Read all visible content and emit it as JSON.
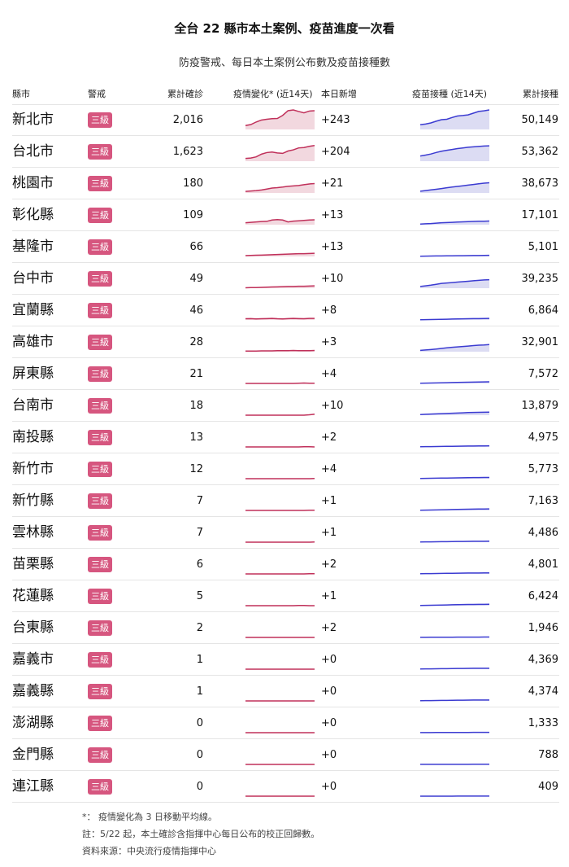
{
  "title": "全台 22 縣市本土案例、疫苗進度一次看",
  "subtitle": "防疫警戒、每日本土案例公布數及疫苗接種數",
  "headers": {
    "county": "縣市",
    "alert": "警戒",
    "total_cases": "累計確診",
    "trend": "疫情變化* (近14天)",
    "new_today": "本日新增",
    "vaccine_trend": "疫苗接種 (近14天)",
    "vaccine_total": "累計接種"
  },
  "colors": {
    "badge": "#d6567f",
    "case_line": "#c0305a",
    "case_fill": "#f2d8df",
    "vax_line": "#3b3bd1",
    "vax_fill": "#dcdcf3"
  },
  "notes": [
    "*： 疫情變化為 3 日移動平均線。",
    "註：5/22 起，本土確診含指揮中心每日公布的校正回歸數。",
    "資料來源：中央流行疫情指揮中心"
  ],
  "chart_data": {
    "type": "table",
    "rows": [
      {
        "county": "新北市",
        "alert": "三級",
        "total": "2,016",
        "new": "+243",
        "vaccinated": "50,149",
        "case_trend": [
          20,
          25,
          38,
          48,
          52,
          55,
          56,
          72,
          96,
          100,
          92,
          85,
          94,
          96
        ],
        "vax_trend": [
          22,
          25,
          30,
          38,
          45,
          47,
          55,
          62,
          64,
          67,
          75,
          83,
          86,
          90
        ]
      },
      {
        "county": "台北市",
        "alert": "三級",
        "total": "1,623",
        "new": "+204",
        "vaccinated": "53,362",
        "case_trend": [
          14,
          16,
          22,
          36,
          44,
          47,
          42,
          40,
          52,
          58,
          68,
          70,
          76,
          80
        ],
        "vax_trend": [
          24,
          28,
          33,
          40,
          46,
          50,
          54,
          58,
          61,
          64,
          66,
          68,
          70,
          71
        ]
      },
      {
        "county": "桃園市",
        "alert": "三級",
        "total": "180",
        "new": "+21",
        "vaccinated": "38,673",
        "case_trend": [
          8,
          10,
          12,
          15,
          20,
          25,
          27,
          30,
          34,
          36,
          38,
          42,
          46,
          48
        ],
        "vax_trend": [
          8,
          11,
          14,
          17,
          20,
          24,
          27,
          30,
          33,
          36,
          39,
          42,
          45,
          47
        ]
      },
      {
        "county": "彰化縣",
        "alert": "三級",
        "total": "109",
        "new": "+13",
        "vaccinated": "17,101",
        "case_trend": [
          10,
          12,
          14,
          16,
          17,
          24,
          26,
          24,
          14,
          18,
          20,
          22,
          24,
          25
        ],
        "vax_trend": [
          3,
          4,
          5,
          7,
          9,
          10,
          11,
          12,
          13,
          14,
          15,
          16,
          16,
          17
        ]
      },
      {
        "county": "基隆市",
        "alert": "三級",
        "total": "66",
        "new": "+13",
        "vaccinated": "5,101",
        "case_trend": [
          4,
          5,
          6,
          7,
          8,
          9,
          10,
          11,
          12,
          13,
          14,
          14,
          15,
          16
        ],
        "vax_trend": [
          1,
          1.5,
          2,
          2.2,
          2.5,
          2.8,
          3,
          3.2,
          3.5,
          3.8,
          4,
          4.3,
          4.7,
          5.1
        ]
      },
      {
        "county": "台中市",
        "alert": "三級",
        "total": "49",
        "new": "+10",
        "vaccinated": "39,235",
        "case_trend": [
          2,
          3,
          3,
          4,
          5,
          6,
          7,
          8,
          9,
          9,
          10,
          10,
          11,
          12
        ],
        "vax_trend": [
          8,
          11,
          14,
          18,
          22,
          24,
          26,
          28,
          30,
          32,
          34,
          36,
          38,
          39
        ]
      },
      {
        "county": "宜蘭縣",
        "alert": "三級",
        "total": "46",
        "new": "+8",
        "vaccinated": "6,864",
        "case_trend": [
          6,
          7,
          5,
          6,
          7,
          8,
          6,
          5,
          7,
          8,
          7,
          6,
          8,
          8
        ],
        "vax_trend": [
          1,
          1.5,
          2,
          2.5,
          3,
          3.5,
          4,
          4.5,
          5,
          5.5,
          6,
          6.3,
          6.6,
          6.9
        ]
      },
      {
        "county": "高雄市",
        "alert": "三級",
        "total": "28",
        "new": "+3",
        "vaccinated": "32,901",
        "case_trend": [
          3,
          3,
          3,
          4,
          4,
          4,
          5,
          5,
          5,
          6,
          5,
          5,
          5,
          6
        ],
        "vax_trend": [
          6,
          8,
          10,
          12,
          15,
          18,
          20,
          22,
          24,
          26,
          28,
          30,
          31,
          33
        ]
      },
      {
        "county": "屏東縣",
        "alert": "三級",
        "total": "21",
        "new": "+4",
        "vaccinated": "7,572",
        "case_trend": [
          0,
          0,
          0,
          0,
          0,
          0,
          0,
          0,
          0,
          0,
          1,
          2,
          1,
          1
        ],
        "vax_trend": [
          1,
          1.5,
          2,
          2.5,
          3,
          3.5,
          4,
          4.5,
          5,
          5.5,
          6,
          6.5,
          7,
          7.6
        ]
      },
      {
        "county": "台南市",
        "alert": "三級",
        "total": "18",
        "new": "+10",
        "vaccinated": "13,879",
        "case_trend": [
          0,
          0,
          0,
          0,
          0,
          0,
          0,
          0,
          0,
          0,
          0,
          0,
          2,
          5
        ],
        "vax_trend": [
          3,
          4,
          5,
          6,
          7,
          8,
          9,
          10,
          11,
          12,
          12.5,
          13,
          13.5,
          13.9
        ]
      },
      {
        "county": "南投縣",
        "alert": "三級",
        "total": "13",
        "new": "+2",
        "vaccinated": "4,975",
        "case_trend": [
          0,
          0,
          0,
          0,
          0,
          0,
          0,
          0,
          0,
          0,
          0,
          1,
          1,
          0
        ],
        "vax_trend": [
          1,
          1.3,
          1.6,
          2,
          2.3,
          2.7,
          3,
          3.3,
          3.6,
          4,
          4.3,
          4.6,
          4.8,
          5
        ]
      },
      {
        "county": "新竹市",
        "alert": "三級",
        "total": "12",
        "new": "+4",
        "vaccinated": "5,773",
        "case_trend": [
          0,
          0,
          0,
          0,
          0,
          0,
          0,
          0,
          0,
          0,
          0,
          0,
          0,
          1
        ],
        "vax_trend": [
          1,
          1.4,
          1.8,
          2.2,
          2.6,
          3,
          3.4,
          3.8,
          4.2,
          4.6,
          5,
          5.3,
          5.6,
          5.8
        ]
      },
      {
        "county": "新竹縣",
        "alert": "三級",
        "total": "7",
        "new": "+1",
        "vaccinated": "7,163",
        "case_trend": [
          0,
          0,
          0,
          0,
          0,
          0,
          0,
          0,
          0,
          0,
          0,
          0,
          1,
          1
        ],
        "vax_trend": [
          1,
          1.5,
          2,
          2.5,
          3,
          3.5,
          4,
          4.5,
          5,
          5.5,
          6,
          6.5,
          6.8,
          7.2
        ]
      },
      {
        "county": "雲林縣",
        "alert": "三級",
        "total": "7",
        "new": "+1",
        "vaccinated": "4,486",
        "case_trend": [
          0,
          0,
          0,
          0,
          0,
          0,
          0,
          0,
          0,
          0,
          0,
          0,
          0,
          1
        ],
        "vax_trend": [
          1,
          1.3,
          1.6,
          1.9,
          2.2,
          2.5,
          2.8,
          3.1,
          3.4,
          3.7,
          4,
          4.2,
          4.4,
          4.5
        ]
      },
      {
        "county": "苗栗縣",
        "alert": "三級",
        "total": "6",
        "new": "+2",
        "vaccinated": "4,801",
        "case_trend": [
          0,
          0,
          0,
          0,
          0,
          0,
          0,
          0,
          0,
          0,
          0,
          0,
          1,
          1
        ],
        "vax_trend": [
          1,
          1.3,
          1.6,
          2,
          2.3,
          2.6,
          3,
          3.3,
          3.6,
          4,
          4.2,
          4.4,
          4.6,
          4.8
        ]
      },
      {
        "county": "花蓮縣",
        "alert": "三級",
        "total": "5",
        "new": "+1",
        "vaccinated": "6,424",
        "case_trend": [
          0,
          0,
          0,
          0,
          0,
          0,
          0,
          0,
          0,
          0,
          1,
          1,
          0,
          0
        ],
        "vax_trend": [
          1,
          1.5,
          2,
          2.5,
          3,
          3.5,
          4,
          4.5,
          5,
          5.4,
          5.8,
          6,
          6.2,
          6.4
        ]
      },
      {
        "county": "台東縣",
        "alert": "三級",
        "total": "2",
        "new": "+2",
        "vaccinated": "1,946",
        "case_trend": [
          0,
          0,
          0,
          0,
          0,
          0,
          0,
          0,
          0,
          0,
          0,
          0,
          0,
          0
        ],
        "vax_trend": [
          0.5,
          0.6,
          0.7,
          0.8,
          0.9,
          1,
          1.1,
          1.2,
          1.3,
          1.4,
          1.5,
          1.6,
          1.8,
          1.9
        ]
      },
      {
        "county": "嘉義市",
        "alert": "三級",
        "total": "1",
        "new": "+0",
        "vaccinated": "4,369",
        "case_trend": [
          0,
          0,
          0,
          0,
          0,
          0,
          0,
          0,
          0,
          0,
          0,
          0,
          0,
          0
        ],
        "vax_trend": [
          1,
          1.3,
          1.6,
          1.9,
          2.2,
          2.5,
          2.8,
          3.1,
          3.4,
          3.7,
          4,
          4.1,
          4.2,
          4.4
        ]
      },
      {
        "county": "嘉義縣",
        "alert": "三級",
        "total": "1",
        "new": "+0",
        "vaccinated": "4,374",
        "case_trend": [
          0,
          0,
          0,
          0,
          0,
          0,
          0,
          0,
          0,
          0,
          0,
          0,
          0,
          0
        ],
        "vax_trend": [
          1,
          1.3,
          1.6,
          1.9,
          2.2,
          2.5,
          2.8,
          3.1,
          3.4,
          3.7,
          4,
          4.1,
          4.2,
          4.4
        ]
      },
      {
        "county": "澎湖縣",
        "alert": "三級",
        "total": "0",
        "new": "+0",
        "vaccinated": "1,333",
        "case_trend": [
          0,
          0,
          0,
          0,
          0,
          0,
          0,
          0,
          0,
          0,
          0,
          0,
          0,
          0
        ],
        "vax_trend": [
          0.4,
          0.5,
          0.6,
          0.7,
          0.8,
          0.9,
          1,
          1.05,
          1.1,
          1.15,
          1.2,
          1.25,
          1.3,
          1.33
        ]
      },
      {
        "county": "金門縣",
        "alert": "三級",
        "total": "0",
        "new": "+0",
        "vaccinated": "788",
        "case_trend": [
          0,
          0,
          0,
          0,
          0,
          0,
          0,
          0,
          0,
          0,
          0,
          0,
          0,
          0
        ],
        "vax_trend": [
          0.3,
          0.35,
          0.4,
          0.45,
          0.5,
          0.55,
          0.6,
          0.62,
          0.65,
          0.68,
          0.7,
          0.73,
          0.76,
          0.79
        ]
      },
      {
        "county": "連江縣",
        "alert": "三級",
        "total": "0",
        "new": "+0",
        "vaccinated": "409",
        "case_trend": [
          0,
          0,
          0,
          0,
          0,
          0,
          0,
          0,
          0,
          0,
          0,
          0,
          0,
          0
        ],
        "vax_trend": [
          0.1,
          0.12,
          0.14,
          0.16,
          0.18,
          0.2,
          0.22,
          0.25,
          0.28,
          0.31,
          0.34,
          0.37,
          0.39,
          0.41
        ]
      }
    ],
    "case_trend_max": 100,
    "vax_trend_max": 90
  }
}
